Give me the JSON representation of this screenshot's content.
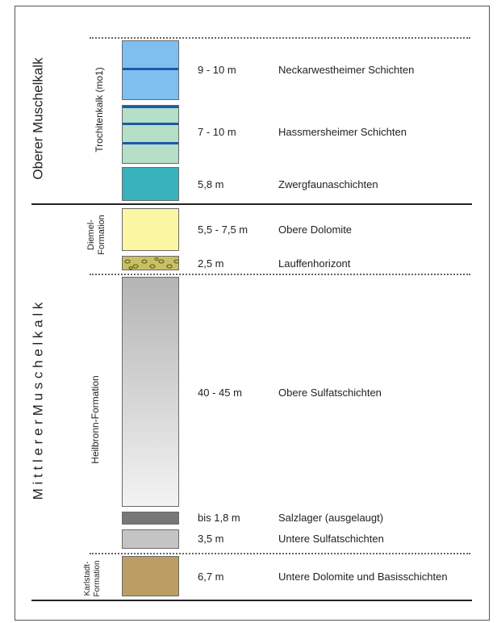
{
  "groups": {
    "oberer": "Oberer Muschelkalk",
    "mittlerer": "M i t t l e r e r M u s c h e l k a l k"
  },
  "formations": {
    "trochitenkalk": "Trochitenkalk (mo1)",
    "diemel_line1": "Diemel-",
    "diemel_line2": "Formation",
    "heilbronn": "Heilbronn-Formation",
    "karlstadt_line1": "Karlstadt-",
    "karlstadt_line2": "Formation"
  },
  "layers": [
    {
      "thickness": "9 - 10 m",
      "name": "Neckarwestheimer Schichten",
      "color": "#7fbff0"
    },
    {
      "thickness": "7 - 10 m",
      "name": "Hassmersheimer Schichten",
      "color": "#b5dfc6"
    },
    {
      "thickness": "5,8 m",
      "name": "Zwergfaunaschichten",
      "color": "#38b2bd"
    },
    {
      "thickness": "5,5 - 7,5 m",
      "name": "Obere Dolomite",
      "color": "#fbf6a2"
    },
    {
      "thickness": "2,5 m",
      "name": "Lauffenhorizont",
      "color": "#c8c062"
    },
    {
      "thickness": "40 - 45 m",
      "name": "Obere Sulfatschichten",
      "color": "#c9c9c9"
    },
    {
      "thickness": "bis 1,8 m",
      "name": "Salzlager (ausgelaugt)",
      "color": "#777777"
    },
    {
      "thickness": "3,5 m",
      "name": "Untere Sulfatschichten",
      "color": "#c4c4c4"
    },
    {
      "thickness": "6,7 m",
      "name": "Untere Dolomite und Basisschichten",
      "color": "#bb9d64"
    }
  ]
}
